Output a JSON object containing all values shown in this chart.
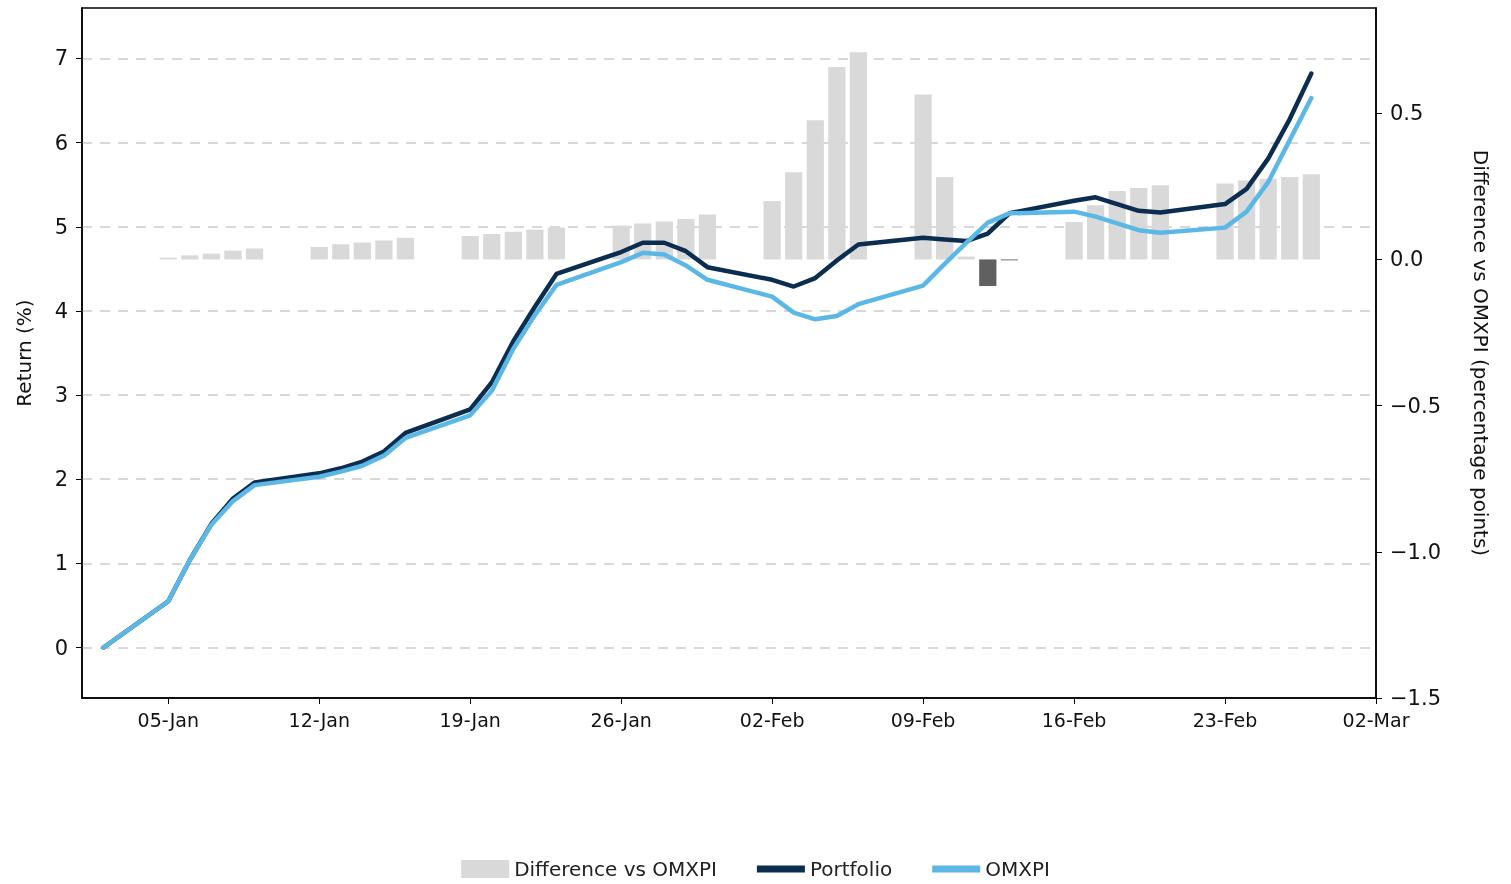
{
  "chart_data": {
    "type": "line",
    "ylabel": "Return (%)",
    "y2label": "Difference vs OMXPI (percentage points)",
    "x": [
      "--01-02",
      "--01-05",
      "--01-06",
      "--01-07",
      "--01-08",
      "--01-09",
      "--01-12",
      "--01-13",
      "--01-14",
      "--01-15",
      "--01-16",
      "--01-19",
      "--01-20",
      "--01-21",
      "--01-22",
      "--01-23",
      "--01-26",
      "--01-27",
      "--01-28",
      "--01-29",
      "--01-30",
      "--02-02",
      "--02-03",
      "--02-04",
      "--02-05",
      "--02-06",
      "--02-09",
      "--02-10",
      "--02-11",
      "--02-12",
      "--02-13",
      "--02-16",
      "--02-17",
      "--02-18",
      "--02-19",
      "--02-20",
      "--02-23",
      "--02-24",
      "--02-25",
      "--02-26",
      "--02-27"
    ],
    "series": [
      {
        "name": "Difference vs OMXPI",
        "type": "bar",
        "axis": "y2",
        "color": "#d9d9d9",
        "values": [
          null,
          0.006,
          0.014,
          0.02,
          0.03,
          0.037,
          0.043,
          0.052,
          0.058,
          0.065,
          0.074,
          0.08,
          0.087,
          0.095,
          0.102,
          0.109,
          0.116,
          0.123,
          0.13,
          0.138,
          0.154,
          0.2,
          0.298,
          0.476,
          0.658,
          0.709,
          0.564,
          0.282,
          0.01,
          -0.091,
          -0.003,
          0.128,
          0.185,
          0.234,
          0.244,
          0.254,
          0.26,
          0.27,
          0.276,
          0.282,
          0.291
        ],
        "colors": [
          "#d9d9d9",
          "#d9d9d9",
          "#d9d9d9",
          "#d9d9d9",
          "#d9d9d9",
          "#d9d9d9",
          "#d9d9d9",
          "#d9d9d9",
          "#d9d9d9",
          "#d9d9d9",
          "#d9d9d9",
          "#d9d9d9",
          "#d9d9d9",
          "#d9d9d9",
          "#d9d9d9",
          "#d9d9d9",
          "#d9d9d9",
          "#d9d9d9",
          "#d9d9d9",
          "#d9d9d9",
          "#d9d9d9",
          "#d9d9d9",
          "#d9d9d9",
          "#d9d9d9",
          "#d9d9d9",
          "#d9d9d9",
          "#d9d9d9",
          "#d9d9d9",
          "#d9d9d9",
          "#606060",
          "#606060",
          "#d9d9d9",
          "#d9d9d9",
          "#d9d9d9",
          "#d9d9d9",
          "#d9d9d9",
          "#d9d9d9",
          "#d9d9d9",
          "#d9d9d9",
          "#d9d9d9",
          "#d9d9d9"
        ]
      },
      {
        "name": "Portfolio",
        "color": "#0b2d50",
        "values": [
          0,
          0.55,
          1.04,
          1.47,
          1.77,
          1.96,
          2.07,
          2.13,
          2.21,
          2.33,
          2.55,
          2.83,
          3.15,
          3.64,
          4.05,
          4.44,
          4.7,
          4.81,
          4.81,
          4.71,
          4.52,
          4.37,
          4.29,
          4.39,
          4.6,
          4.79,
          4.87,
          4.85,
          4.83,
          4.92,
          5.16,
          5.31,
          5.35,
          5.27,
          5.19,
          5.17,
          5.27,
          5.45,
          5.81,
          6.28,
          6.82
        ]
      },
      {
        "name": "OMXPI",
        "color": "#5bb8e6",
        "values": [
          0,
          0.55,
          1.04,
          1.46,
          1.74,
          1.93,
          2.03,
          2.09,
          2.16,
          2.28,
          2.49,
          2.76,
          3.05,
          3.55,
          3.95,
          4.31,
          4.58,
          4.69,
          4.67,
          4.54,
          4.37,
          4.17,
          3.98,
          3.9,
          3.94,
          4.08,
          4.3,
          4.56,
          4.81,
          5.05,
          5.16,
          5.18,
          5.12,
          5.04,
          4.96,
          4.93,
          4.99,
          5.18,
          5.53,
          6.03,
          6.53
        ]
      }
    ],
    "xlim": [
      "--01-01",
      "--03-02"
    ],
    "xticks": [
      {
        "value": "--01-05",
        "label": "05-Jan"
      },
      {
        "value": "--01-12",
        "label": "12-Jan"
      },
      {
        "value": "--01-19",
        "label": "19-Jan"
      },
      {
        "value": "--01-26",
        "label": "26-Jan"
      },
      {
        "value": "--02-02",
        "label": "02-Feb"
      },
      {
        "value": "--02-09",
        "label": "09-Feb"
      },
      {
        "value": "--02-16",
        "label": "16-Feb"
      },
      {
        "value": "--02-23",
        "label": "23-Feb"
      },
      {
        "value": "--03-02",
        "label": "02-Mar"
      }
    ],
    "ylim": [
      -0.6,
      7.6
    ],
    "yticks": [
      0,
      1,
      2,
      3,
      4,
      5,
      6,
      7
    ],
    "y2lim": [
      -1.5,
      0.86
    ],
    "y2ticks": [
      {
        "value": -1.5,
        "label": "−1.5"
      },
      {
        "value": -1.0,
        "label": "−1.0"
      },
      {
        "value": -0.5,
        "label": "−0.5"
      },
      {
        "value": 0.0,
        "label": "0.0"
      },
      {
        "value": 0.5,
        "label": "0.5"
      }
    ],
    "grid": "y",
    "legend": "bottom",
    "marker": "none",
    "line_style": "solid"
  }
}
